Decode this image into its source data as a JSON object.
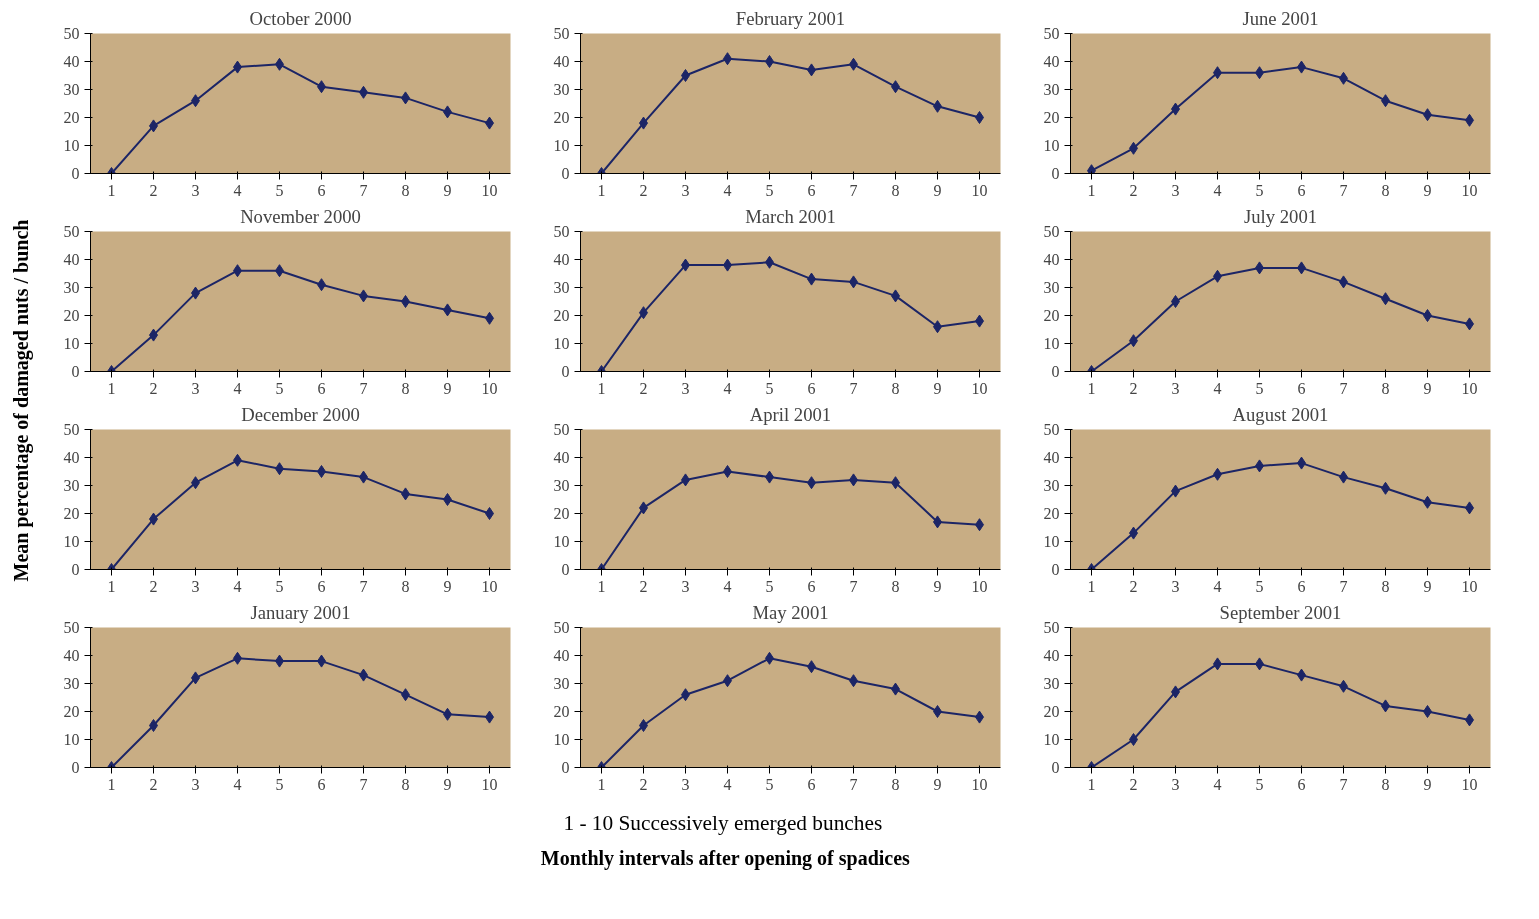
{
  "chart_data": [
    {
      "type": "line",
      "title": "October 2000",
      "ylabel": "Mean percentage of damaged nuts / bunch",
      "xlabel": "1 - 10  Successively emerged bunches",
      "annotations": [
        "Monthly intervals after opening of spadices"
      ],
      "categories": [
        "1",
        "2",
        "3",
        "4",
        "5",
        "6",
        "7",
        "8",
        "9",
        "10"
      ],
      "ylim": [
        0,
        50
      ],
      "yticks": [
        0,
        10,
        20,
        30,
        40,
        50
      ],
      "grid": false,
      "marker": "diamond",
      "line_style": "solid",
      "series": [
        {
          "color": "#1c2566",
          "values": [
            0,
            17,
            26,
            38,
            39,
            31,
            29,
            27,
            22,
            18
          ]
        }
      ]
    },
    {
      "type": "line",
      "title": "February 2001",
      "categories": [
        "1",
        "2",
        "3",
        "4",
        "5",
        "6",
        "7",
        "8",
        "9",
        "10"
      ],
      "ylim": [
        0,
        50
      ],
      "yticks": [
        0,
        10,
        20,
        30,
        40,
        50
      ],
      "grid": false,
      "marker": "diamond",
      "line_style": "solid",
      "series": [
        {
          "color": "#1c2566",
          "values": [
            0,
            18,
            35,
            41,
            40,
            37,
            39,
            31,
            24,
            20
          ]
        }
      ]
    },
    {
      "type": "line",
      "title": "June 2001",
      "categories": [
        "1",
        "2",
        "3",
        "4",
        "5",
        "6",
        "7",
        "8",
        "9",
        "10"
      ],
      "ylim": [
        0,
        50
      ],
      "yticks": [
        0,
        10,
        20,
        30,
        40,
        50
      ],
      "grid": false,
      "marker": "diamond",
      "line_style": "solid",
      "series": [
        {
          "color": "#1c2566",
          "values": [
            1,
            9,
            23,
            36,
            36,
            38,
            34,
            26,
            21,
            19
          ]
        }
      ]
    },
    {
      "type": "line",
      "title": "November 2000",
      "categories": [
        "1",
        "2",
        "3",
        "4",
        "5",
        "6",
        "7",
        "8",
        "9",
        "10"
      ],
      "ylim": [
        0,
        50
      ],
      "yticks": [
        0,
        10,
        20,
        30,
        40,
        50
      ],
      "grid": false,
      "marker": "diamond",
      "line_style": "solid",
      "series": [
        {
          "color": "#1c2566",
          "values": [
            0,
            13,
            28,
            36,
            36,
            31,
            27,
            25,
            22,
            19
          ]
        }
      ]
    },
    {
      "type": "line",
      "title": "March 2001",
      "categories": [
        "1",
        "2",
        "3",
        "4",
        "5",
        "6",
        "7",
        "8",
        "9",
        "10"
      ],
      "ylim": [
        0,
        50
      ],
      "yticks": [
        0,
        10,
        20,
        30,
        40,
        50
      ],
      "grid": false,
      "marker": "diamond",
      "line_style": "solid",
      "series": [
        {
          "color": "#1c2566",
          "values": [
            0,
            21,
            38,
            38,
            39,
            33,
            32,
            27,
            16,
            18
          ]
        }
      ]
    },
    {
      "type": "line",
      "title": "July 2001",
      "categories": [
        "1",
        "2",
        "3",
        "4",
        "5",
        "6",
        "7",
        "8",
        "9",
        "10"
      ],
      "ylim": [
        0,
        50
      ],
      "yticks": [
        0,
        10,
        20,
        30,
        40,
        50
      ],
      "grid": false,
      "marker": "diamond",
      "line_style": "solid",
      "series": [
        {
          "color": "#1c2566",
          "values": [
            0,
            11,
            25,
            34,
            37,
            37,
            32,
            26,
            20,
            17
          ]
        }
      ]
    },
    {
      "type": "line",
      "title": "December 2000",
      "categories": [
        "1",
        "2",
        "3",
        "4",
        "5",
        "6",
        "7",
        "8",
        "9",
        "10"
      ],
      "ylim": [
        0,
        50
      ],
      "yticks": [
        0,
        10,
        20,
        30,
        40,
        50
      ],
      "grid": false,
      "marker": "diamond",
      "line_style": "solid",
      "series": [
        {
          "color": "#1c2566",
          "values": [
            0,
            18,
            31,
            39,
            36,
            35,
            33,
            27,
            25,
            20
          ]
        }
      ]
    },
    {
      "type": "line",
      "title": "April 2001",
      "categories": [
        "1",
        "2",
        "3",
        "4",
        "5",
        "6",
        "7",
        "8",
        "9",
        "10"
      ],
      "ylim": [
        0,
        50
      ],
      "yticks": [
        0,
        10,
        20,
        30,
        40,
        50
      ],
      "grid": false,
      "marker": "diamond",
      "line_style": "solid",
      "series": [
        {
          "color": "#1c2566",
          "values": [
            0,
            22,
            32,
            35,
            33,
            31,
            32,
            31,
            17,
            16
          ]
        }
      ]
    },
    {
      "type": "line",
      "title": "August 2001",
      "categories": [
        "1",
        "2",
        "3",
        "4",
        "5",
        "6",
        "7",
        "8",
        "9",
        "10"
      ],
      "ylim": [
        0,
        50
      ],
      "yticks": [
        0,
        10,
        20,
        30,
        40,
        50
      ],
      "grid": false,
      "marker": "diamond",
      "line_style": "solid",
      "series": [
        {
          "color": "#1c2566",
          "values": [
            0,
            13,
            28,
            34,
            37,
            38,
            33,
            29,
            24,
            22
          ]
        }
      ]
    },
    {
      "type": "line",
      "title": "January 2001",
      "categories": [
        "1",
        "2",
        "3",
        "4",
        "5",
        "6",
        "7",
        "8",
        "9",
        "10"
      ],
      "ylim": [
        0,
        50
      ],
      "yticks": [
        0,
        10,
        20,
        30,
        40,
        50
      ],
      "grid": false,
      "marker": "diamond",
      "line_style": "solid",
      "series": [
        {
          "color": "#1c2566",
          "values": [
            0,
            15,
            32,
            39,
            38,
            38,
            33,
            26,
            19,
            18
          ]
        }
      ]
    },
    {
      "type": "line",
      "title": "May 2001",
      "categories": [
        "1",
        "2",
        "3",
        "4",
        "5",
        "6",
        "7",
        "8",
        "9",
        "10"
      ],
      "ylim": [
        0,
        50
      ],
      "yticks": [
        0,
        10,
        20,
        30,
        40,
        50
      ],
      "grid": false,
      "marker": "diamond",
      "line_style": "solid",
      "series": [
        {
          "color": "#1c2566",
          "values": [
            0,
            15,
            26,
            31,
            39,
            36,
            31,
            28,
            20,
            18
          ]
        }
      ]
    },
    {
      "type": "line",
      "title": "September 2001",
      "categories": [
        "1",
        "2",
        "3",
        "4",
        "5",
        "6",
        "7",
        "8",
        "9",
        "10"
      ],
      "ylim": [
        0,
        50
      ],
      "yticks": [
        0,
        10,
        20,
        30,
        40,
        50
      ],
      "grid": false,
      "marker": "diamond",
      "line_style": "solid",
      "series": [
        {
          "color": "#1c2566",
          "values": [
            0,
            10,
            27,
            37,
            37,
            33,
            29,
            22,
            20,
            17
          ]
        }
      ]
    }
  ]
}
